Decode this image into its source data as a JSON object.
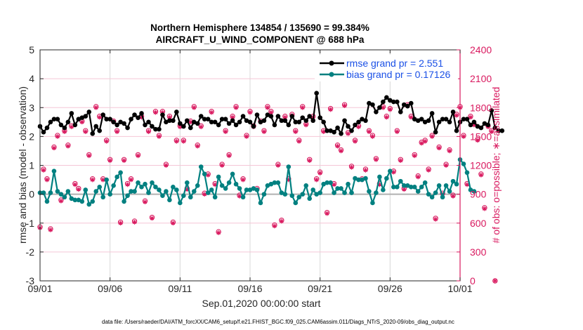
{
  "chart_data": {
    "type": "line",
    "title": [
      "Northern Hemisphere 134854 / 135690 = 99.384%",
      "AIRCRAFT_U_WIND_COMPONENT @ 688 hPa"
    ],
    "xlabel": "Sep.01,2020 00:00:00 start",
    "ylabel": "rmse and bias (model - observation)",
    "ylabel_right": "# of obs: o=possible; ∗=assimilated",
    "x_ticks": [
      "09/01",
      "09/06",
      "09/11",
      "09/16",
      "09/21",
      "09/26",
      "10/01"
    ],
    "y_ticks": [
      "-3",
      "-2",
      "-1",
      "0",
      "1",
      "2",
      "3",
      "4",
      "5"
    ],
    "y_right_ticks": [
      "0",
      "300",
      "600",
      "900",
      "1200",
      "1500",
      "1800",
      "2100",
      "2400"
    ],
    "xlim_days": [
      0,
      30
    ],
    "ylim": [
      -3,
      5
    ],
    "ylim_right": [
      0,
      2400
    ],
    "time_step_days": 0.25,
    "legend": {
      "placement": "top-right",
      "entries": [
        {
          "label": "rmse grand pr = 2.551",
          "color": "#000000"
        },
        {
          "label": "bias grand pr = 0.17126",
          "color": "#008080"
        }
      ]
    },
    "colors": {
      "rmse": "#000000",
      "bias": "#008080",
      "obs": "#d9195f",
      "zero_line": "#b0b0b0",
      "grid": "#d8d8d8",
      "right_grid": "#f5c6d6"
    },
    "series": [
      {
        "name": "rmse",
        "values": [
          2.35,
          2.15,
          2.3,
          2.5,
          2.6,
          2.6,
          2.4,
          2.3,
          2.5,
          2.8,
          2.4,
          2.6,
          2.65,
          2.7,
          2.85,
          2.1,
          2.35,
          2.2,
          2.75,
          2.6,
          2.6,
          2.5,
          2.4,
          2.5,
          2.45,
          2.3,
          2.6,
          2.75,
          2.65,
          2.8,
          2.4,
          2.5,
          2.35,
          2.25,
          2.25,
          2.75,
          2.5,
          2.55,
          2.55,
          2.85,
          2.45,
          2.35,
          2.55,
          2.3,
          2.5,
          2.45,
          2.7,
          2.6,
          2.6,
          2.5,
          2.5,
          2.4,
          2.6,
          2.6,
          2.45,
          2.55,
          2.4,
          2.5,
          2.7,
          2.55,
          2.5,
          2.35,
          2.75,
          2.5,
          2.55,
          2.75,
          2.7,
          2.4,
          2.7,
          2.55,
          2.55,
          2.4,
          2.7,
          2.5,
          2.5,
          2.65,
          2.55,
          2.7,
          2.55,
          3.5,
          2.65,
          2.5,
          2.2,
          2.2,
          2.15,
          2.3,
          2.1,
          2.55,
          2.35,
          2.2,
          2.4,
          2.5,
          2.6,
          2.55,
          3.15,
          3.1,
          2.85,
          3.0,
          3.2,
          3.35,
          3.25,
          3.2,
          3.2,
          2.85,
          3.1,
          3.05,
          3.15,
          2.6,
          2.55,
          2.6,
          2.5,
          2.55,
          2.8,
          2.15,
          2.5,
          2.6,
          2.6,
          2.5,
          2.85,
          2.2,
          2.5,
          2.6,
          2.6,
          2.4,
          2.5,
          2.35,
          2.3,
          2.45,
          2.4,
          2.9,
          2.3,
          2.2,
          2.2
        ]
      },
      {
        "name": "bias",
        "values": [
          0.05,
          0.05,
          -0.25,
          0.05,
          0.8,
          0.1,
          0.0,
          -0.1,
          0.1,
          -0.15,
          -0.2,
          -0.2,
          -0.25,
          0.15,
          -0.35,
          -0.25,
          0.1,
          0.25,
          -0.1,
          0.5,
          0.0,
          0.3,
          0.6,
          0.75,
          -0.25,
          -0.05,
          0.1,
          0.1,
          0.4,
          0.25,
          0.35,
          0.05,
          0.4,
          0.25,
          0.15,
          -0.05,
          0.1,
          -0.2,
          0.25,
          0.15,
          -0.3,
          -0.05,
          0.4,
          -0.1,
          0.1,
          0.3,
          0.95,
          0.7,
          0.05,
          0.15,
          -0.1,
          0.6,
          0.3,
          0.2,
          0.4,
          0.7,
          0.35,
          0.2,
          -0.1,
          0.15,
          0.15,
          0.2,
          0.15,
          -0.3,
          0.0,
          0.3,
          0.35,
          0.4,
          0.4,
          0.05,
          0.0,
          0.95,
          -0.05,
          -0.3,
          -0.1,
          0.0,
          0.3,
          -0.15,
          0.15,
          0.0,
          0.05,
          0.35,
          0.4,
          0.4,
          0.05,
          0.2,
          0.2,
          0.05,
          0.35,
          0.05,
          0.55,
          0.5,
          0.5,
          0.55,
          0.1,
          -0.3,
          0.05,
          0.6,
          0.15,
          0.55,
          0.8,
          0.25,
          0.25,
          0.45,
          0.3,
          0.3,
          0.25,
          0.25,
          0.1,
          0.25,
          0.4,
          0.0,
          -0.1,
          0.05,
          0.3,
          -0.1,
          0.3,
          0.1,
          0.45,
          0.35,
          1.2,
          1.05,
          0.75,
          0.15,
          0.1
        ]
      },
      {
        "name": "obs_assimilated",
        "values": [
          550,
          1150,
          1050,
          530,
          1380,
          1500,
          830,
          1550,
          1400,
          1600,
          1000,
          950,
          1650,
          1550,
          1300,
          1050,
          1800,
          1700,
          1050,
          1450,
          1250,
          1650,
          1550,
          600,
          1250,
          1000,
          1050,
          610,
          1300,
          1700,
          820,
          1550,
          650,
          1750,
          1500,
          1750,
          1200,
          1700,
          600,
          1450,
          1600,
          1450,
          950,
          1650,
          1800,
          1400,
          1600,
          900,
          1100,
          1750,
          1000,
          500,
          1200,
          1550,
          1300,
          1700,
          1800,
          880,
          1050,
          1500,
          1750,
          1600,
          950,
          1650,
          1550,
          1800,
          1750,
          570,
          1200,
          620,
          1700,
          1050,
          1720,
          1550,
          1450,
          1800,
          1620,
          1250,
          1700,
          1050,
          1120,
          1550,
          700,
          1780,
          1000,
          1400,
          1350,
          1820,
          1530,
          1180,
          1450,
          1600,
          1050,
          1150,
          1550,
          1500,
          1260,
          1000,
          1800,
          1700,
          1780,
          1130,
          1550,
          1250,
          950,
          1820,
          1700,
          1300,
          1080,
          1430,
          1450,
          1150,
          1500,
          640,
          1380,
          900,
          1200,
          1350,
          880,
          1720,
          1800,
          1500,
          1000,
          1700,
          1620,
          1460,
          1100,
          750,
          1600,
          1550,
          0
        ]
      },
      {
        "name": "obs_possible",
        "values": [
          560,
          1160,
          1060,
          540,
          1390,
          1510,
          840,
          1560,
          1410,
          1610,
          1010,
          960,
          1660,
          1560,
          1310,
          1060,
          1810,
          1710,
          1060,
          1460,
          1260,
          1660,
          1560,
          610,
          1260,
          1010,
          1060,
          620,
          1310,
          1710,
          830,
          1560,
          660,
          1760,
          1510,
          1760,
          1210,
          1710,
          610,
          1460,
          1610,
          1460,
          960,
          1660,
          1810,
          1410,
          1610,
          910,
          1110,
          1760,
          1010,
          510,
          1210,
          1560,
          1310,
          1710,
          1810,
          890,
          1060,
          1510,
          1760,
          1610,
          960,
          1660,
          1560,
          1810,
          1760,
          580,
          1210,
          630,
          1710,
          1060,
          1730,
          1560,
          1460,
          1810,
          1630,
          1260,
          1710,
          1060,
          1130,
          1560,
          710,
          1790,
          1010,
          1410,
          1360,
          1830,
          1540,
          1190,
          1460,
          1610,
          1060,
          1160,
          1560,
          1510,
          1270,
          1010,
          1810,
          1710,
          1790,
          1140,
          1560,
          1260,
          960,
          1830,
          1710,
          1310,
          1090,
          1440,
          1460,
          1160,
          1510,
          650,
          1390,
          910,
          1210,
          1360,
          890,
          1730,
          1810,
          1510,
          1010,
          1710,
          1630,
          1470,
          1110,
          760,
          1610,
          1560,
          0
        ]
      }
    ]
  },
  "footer": "data file: /Users/raeder/DAI/ATM_forcXX/CAM6_setup/f.e21.FHIST_BGC.f09_025.CAM6assim.011/Diags_NTrS_2020-09/obs_diag_output.nc"
}
